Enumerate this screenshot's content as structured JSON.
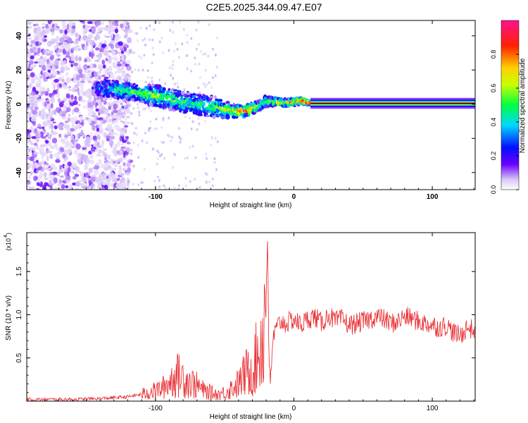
{
  "title": "C2E5.2025.344.09.47.E07",
  "chart_data": [
    {
      "type": "heatmap",
      "xlabel": "Height of straight line (km)",
      "ylabel": "Frequency (Hz)",
      "xlim": [
        -193,
        131
      ],
      "ylim": [
        -50,
        49
      ],
      "xticks": [
        {
          "v": -100,
          "label": "-100"
        },
        {
          "v": 0,
          "label": "0"
        },
        {
          "v": 100,
          "label": "100"
        }
      ],
      "yticks": [
        {
          "v": -40,
          "label": "-40"
        },
        {
          "v": -20,
          "label": "-20"
        },
        {
          "v": 0,
          "label": "0"
        },
        {
          "v": 20,
          "label": "20"
        },
        {
          "v": 40,
          "label": "40"
        }
      ],
      "ridge": [
        {
          "x": -142,
          "f": 9,
          "w": 4,
          "a": 0.25
        },
        {
          "x": -130,
          "f": 9,
          "w": 5,
          "a": 0.45
        },
        {
          "x": -115,
          "f": 7,
          "w": 5,
          "a": 0.5
        },
        {
          "x": -100,
          "f": 5,
          "w": 6,
          "a": 0.55
        },
        {
          "x": -85,
          "f": 2,
          "w": 6,
          "a": 0.5
        },
        {
          "x": -70,
          "f": 0,
          "w": 6,
          "a": 0.45
        },
        {
          "x": -55,
          "f": -2,
          "w": 6,
          "a": 0.5
        },
        {
          "x": -45,
          "f": -4,
          "w": 4,
          "a": 0.65
        },
        {
          "x": -35,
          "f": -4,
          "w": 3,
          "a": 0.85
        },
        {
          "x": -25,
          "f": -1,
          "w": 3,
          "a": 0.6
        },
        {
          "x": -20,
          "f": 2,
          "w": 3,
          "a": 0.5
        },
        {
          "x": -10,
          "f": 1,
          "w": 2,
          "a": 0.75
        },
        {
          "x": 0,
          "f": 1,
          "w": 2,
          "a": 0.8
        },
        {
          "x": 5,
          "f": 2,
          "w": 2,
          "a": 0.9
        },
        {
          "x": 12,
          "f": 0.5,
          "w": 1,
          "a": 1.0
        },
        {
          "x": 131,
          "f": 0.5,
          "w": 1,
          "a": 1.0
        }
      ],
      "colorbar": {
        "label": "Normalized spectral amplitude",
        "ticks": [
          {
            "v": 0.0,
            "label": "0.0"
          },
          {
            "v": 0.2,
            "label": "0.2"
          },
          {
            "v": 0.4,
            "label": "0.4"
          },
          {
            "v": 0.6,
            "label": "0.6"
          },
          {
            "v": 0.8,
            "label": "0.8"
          }
        ],
        "range": [
          0,
          1
        ]
      }
    },
    {
      "type": "line",
      "color": "#e8262a",
      "xlabel": "Height of straight line (km)",
      "ylabel": "SNR (10 * v/v)",
      "multiplier_label": "(x10",
      "multiplier_exp": "4",
      "xlim": [
        -193,
        131
      ],
      "ylim": [
        0,
        1.95
      ],
      "xticks": [
        {
          "v": -100,
          "label": "-100"
        },
        {
          "v": 0,
          "label": "0"
        },
        {
          "v": 100,
          "label": "100"
        }
      ],
      "yticks": [
        {
          "v": 0.5,
          "label": "0.5"
        },
        {
          "v": 1.0,
          "label": "1.0"
        },
        {
          "v": 1.5,
          "label": "1.5"
        }
      ],
      "x": [
        -193,
        -180,
        -160,
        -140,
        -130,
        -120,
        -110,
        -100,
        -95,
        -90,
        -85,
        -80,
        -75,
        -70,
        -65,
        -60,
        -55,
        -50,
        -45,
        -40,
        -35,
        -30,
        -28,
        -25,
        -22,
        -20,
        -19,
        -18,
        -17,
        -15,
        -12,
        -10,
        -5,
        0,
        5,
        10,
        15,
        20,
        25,
        30,
        35,
        40,
        45,
        50,
        55,
        60,
        65,
        70,
        75,
        80,
        85,
        90,
        95,
        100,
        105,
        110,
        115,
        120,
        125,
        131
      ],
      "y": [
        0.02,
        0.02,
        0.02,
        0.03,
        0.04,
        0.05,
        0.08,
        0.12,
        0.15,
        0.22,
        0.3,
        0.28,
        0.22,
        0.18,
        0.12,
        0.1,
        0.08,
        0.1,
        0.15,
        0.2,
        0.32,
        0.38,
        0.45,
        0.6,
        0.8,
        1.3,
        1.85,
        0.5,
        0.15,
        0.75,
        0.85,
        0.92,
        0.9,
        0.95,
        0.88,
        0.95,
        0.98,
        0.9,
        1.0,
        0.92,
        0.95,
        0.88,
        0.9,
        0.92,
        0.95,
        0.98,
        0.95,
        0.9,
        0.92,
        0.98,
        0.96,
        0.92,
        0.9,
        0.88,
        0.85,
        0.88,
        0.8,
        0.75,
        0.85,
        0.82
      ],
      "noise": 0.12
    }
  ]
}
